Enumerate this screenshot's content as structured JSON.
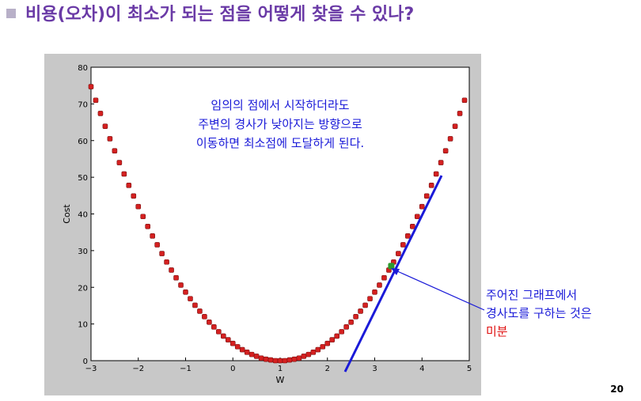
{
  "header": {
    "title": "비용(오차)이 최소가 되는 점을 어떻게 찾을 수 있나?"
  },
  "chart_data": {
    "type": "scatter",
    "xlabel": "W",
    "ylabel": "Cost",
    "xlim": [
      -3,
      5
    ],
    "ylim": [
      0,
      80
    ],
    "xticks": [
      {
        "value": -3,
        "label": "−3"
      },
      {
        "value": -2,
        "label": "−2"
      },
      {
        "value": -1,
        "label": "−1"
      },
      0,
      1,
      2,
      3,
      4,
      5
    ],
    "yticks": [
      0,
      10,
      20,
      30,
      40,
      50,
      60,
      70,
      80
    ],
    "color": "#d42020",
    "x": [
      -3.0,
      -2.9,
      -2.8,
      -2.7,
      -2.6,
      -2.5,
      -2.4,
      -2.3,
      -2.2,
      -2.1,
      -2.0,
      -1.9,
      -1.8,
      -1.7,
      -1.6,
      -1.5,
      -1.4,
      -1.3,
      -1.2,
      -1.1,
      -1.0,
      -0.9,
      -0.8,
      -0.7,
      -0.6,
      -0.5,
      -0.4,
      -0.3,
      -0.2,
      -0.1,
      0.0,
      0.1,
      0.2,
      0.3,
      0.4,
      0.5,
      0.6,
      0.7,
      0.8,
      0.9,
      1.0,
      1.1,
      1.2,
      1.3,
      1.4,
      1.5,
      1.6,
      1.7,
      1.8,
      1.9,
      2.0,
      2.1,
      2.2,
      2.3,
      2.4,
      2.5,
      2.6,
      2.7,
      2.8,
      2.9,
      3.0,
      3.1,
      3.2,
      3.3,
      3.4,
      3.5,
      3.6,
      3.7,
      3.8,
      3.9,
      4.0,
      4.1,
      4.2,
      4.3,
      4.4,
      4.5,
      4.6,
      4.7,
      4.8,
      4.9
    ],
    "values": [
      74.7,
      71.0,
      67.4,
      63.9,
      60.5,
      57.2,
      54.0,
      50.9,
      47.8,
      44.9,
      42.0,
      39.3,
      36.6,
      34.0,
      31.6,
      29.2,
      26.9,
      24.7,
      22.6,
      20.6,
      18.7,
      16.9,
      15.1,
      13.5,
      12.0,
      10.5,
      9.2,
      7.9,
      6.7,
      5.7,
      4.7,
      3.8,
      3.0,
      2.3,
      1.7,
      1.2,
      0.7,
      0.4,
      0.2,
      0.0,
      0,
      0.0,
      0.2,
      0.4,
      0.7,
      1.2,
      1.7,
      2.3,
      3.0,
      3.8,
      4.7,
      5.7,
      6.7,
      7.9,
      9.2,
      10.5,
      12.0,
      13.5,
      15.1,
      16.9,
      18.7,
      20.6,
      22.6,
      24.7,
      26.9,
      29.2,
      31.6,
      34.0,
      36.6,
      39.3,
      42.0,
      44.9,
      47.8,
      50.9,
      54.0,
      57.2,
      60.5,
      63.9,
      67.4,
      71.0
    ],
    "highlight_point": {
      "x": 3.35,
      "y": 25.8,
      "color": "#2e9a2e"
    },
    "annotations": [
      "임의의 점에서 시작하더라도",
      "주변의 경사가 낮아지는 방향으로",
      "이동하면 최소점에 도달하게 된다."
    ]
  },
  "side_note": {
    "lines": [
      "주어진 그래프에서",
      "경사도를 구하는 것은"
    ],
    "emphasis": "미분"
  },
  "page_number": "20"
}
